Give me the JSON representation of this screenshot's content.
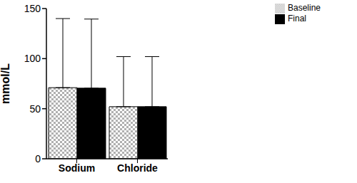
{
  "chart_data": {
    "type": "bar",
    "categories": [
      "Sodium",
      "Chloride"
    ],
    "y_label": "mmol/L",
    "series": [
      {
        "name": "Baseline",
        "color": "#b0b0b0",
        "values": [
          71,
          52
        ],
        "errors": [
          69,
          50
        ]
      },
      {
        "name": "Final",
        "color": "#000000",
        "values": [
          70.5,
          52
        ],
        "errors": [
          69,
          50
        ]
      }
    ],
    "ylim": [
      0,
      150
    ],
    "yticks": [
      0,
      50,
      100,
      150
    ],
    "grid": false,
    "legend": "top-right"
  }
}
